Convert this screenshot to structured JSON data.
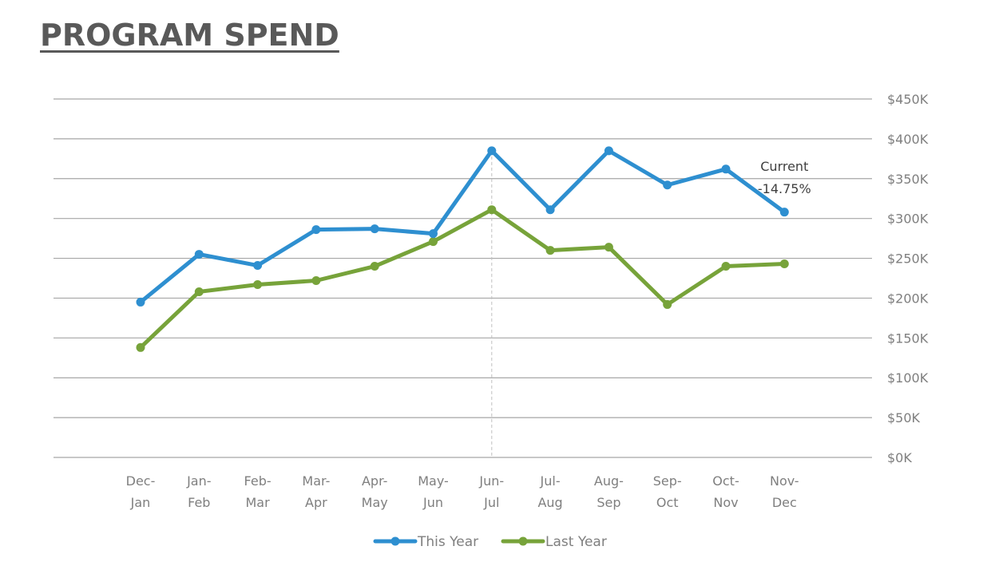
{
  "title": "PROGRAM SPEND",
  "chart_data": {
    "type": "line",
    "title": "PROGRAM SPEND",
    "categories": [
      [
        "Dec-",
        "Jan"
      ],
      [
        "Jan-",
        "Feb"
      ],
      [
        "Feb-",
        "Mar"
      ],
      [
        "Mar-",
        "Apr"
      ],
      [
        "Apr-",
        "May"
      ],
      [
        "May-",
        "Jun"
      ],
      [
        "Jun-",
        "Jul"
      ],
      [
        "Jul-",
        "Aug"
      ],
      [
        "Aug-",
        "Sep"
      ],
      [
        "Sep-",
        "Oct"
      ],
      [
        "Oct-",
        "Nov"
      ],
      [
        "Nov-",
        "Dec"
      ]
    ],
    "series": [
      {
        "name": "This Year",
        "color": "#2e8fd0",
        "values": [
          195,
          255,
          241,
          286,
          287,
          281,
          385,
          311,
          385,
          342,
          362,
          308
        ]
      },
      {
        "name": "Last Year",
        "color": "#77a33a",
        "values": [
          138,
          208,
          217,
          222,
          240,
          271,
          311,
          260,
          264,
          192,
          240,
          243
        ]
      }
    ],
    "y_unit": "$K",
    "ylim": [
      0,
      450
    ],
    "y_ticks": [
      {
        "value": 0,
        "label": "$0K"
      },
      {
        "value": 50,
        "label": "$50K"
      },
      {
        "value": 100,
        "label": "$100K"
      },
      {
        "value": 150,
        "label": "$150K"
      },
      {
        "value": 200,
        "label": "$200K"
      },
      {
        "value": 250,
        "label": "$250K"
      },
      {
        "value": 300,
        "label": "$300K"
      },
      {
        "value": 350,
        "label": "$350K"
      },
      {
        "value": 400,
        "label": "$400K"
      },
      {
        "value": 450,
        "label": "$450K"
      }
    ],
    "y_axis_side": "right",
    "grid": true,
    "marker_line_category_index": 6,
    "annotation": {
      "lines": [
        "Current",
        "-14.75%"
      ],
      "series_index": 0,
      "point_index": 11
    },
    "legend": "bottom"
  }
}
